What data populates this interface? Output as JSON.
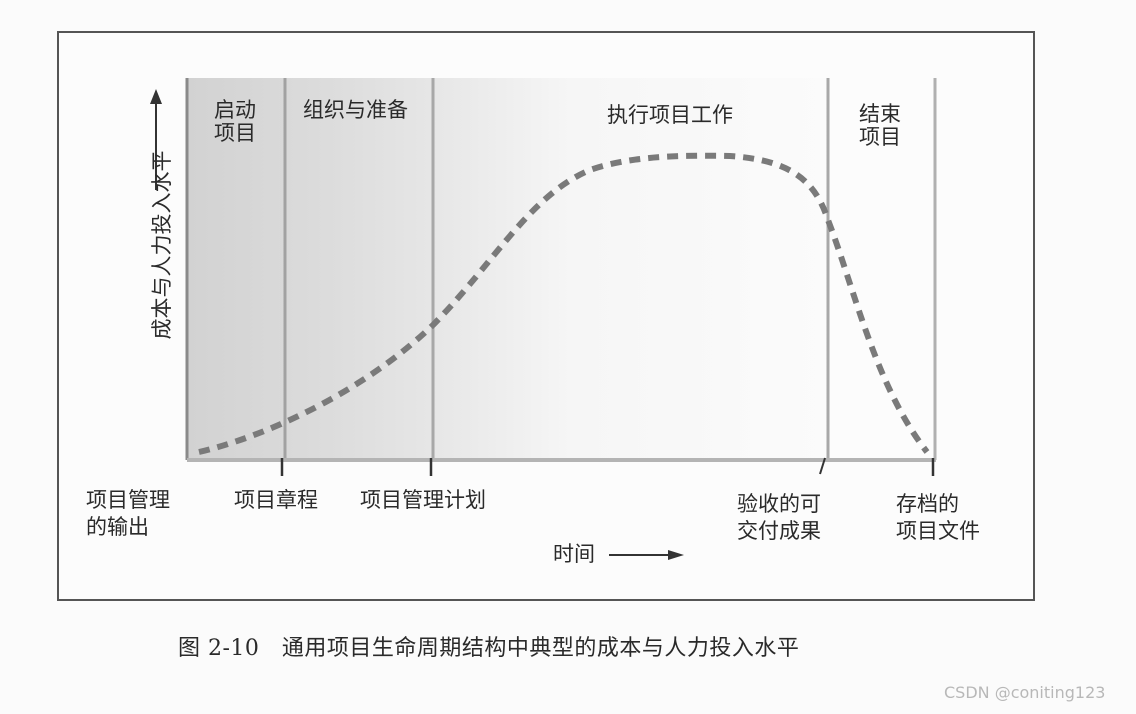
{
  "y_axis_label": "成本与人力投入水平",
  "x_axis_label": "时间",
  "phases": [
    {
      "name": "启动",
      "name2": "项目"
    },
    {
      "name": "组织与准备"
    },
    {
      "name": "执行项目工作"
    },
    {
      "name": "结束",
      "name2": "项目"
    }
  ],
  "milestones": [
    {
      "line1": "项目管理",
      "line2": "的输出"
    },
    {
      "line1": "项目章程"
    },
    {
      "line1": "项目管理计划"
    },
    {
      "line1": "验收的可",
      "line2": "交付成果"
    },
    {
      "line1": "存档的",
      "line2": "项目文件"
    }
  ],
  "caption": "图 2-10　通用项目生命周期结构中典型的成本与人力投入水平",
  "watermark": "CSDN @coniting123",
  "colors": {
    "curve": "#7a7a7a",
    "phase_shaded": "#d4d4d4",
    "phase_light": "#f3f3f3",
    "divider": "#a8a8a8"
  }
}
